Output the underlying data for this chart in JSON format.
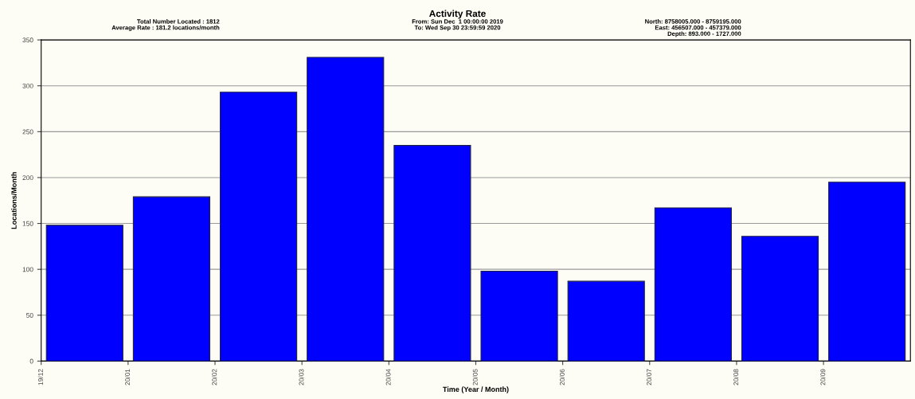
{
  "chart_data": {
    "type": "bar",
    "title": "Activity Rate",
    "annotations": [
      "Total Number Located : 1812\nAverage Rate : 181.2 locations/month",
      "From: Sun Dec  1 00:00:00 2019\nTo: Wed Sep 30 23:59:59 2020",
      "North: 8758005.000 - 8759195.000\nEast: 456507.000 - 457379.000\nDepth: 893.000 - 1727.000"
    ],
    "xlabel": "Time (Year / Month)",
    "ylabel": "Locations/Month",
    "categories": [
      "19/12",
      "20/01",
      "20/02",
      "20/03",
      "20/04",
      "20/05",
      "20/06",
      "20/07",
      "20/08",
      "20/09"
    ],
    "values": [
      148,
      179,
      293,
      331,
      235,
      98,
      87,
      167,
      136,
      195
    ],
    "color": "#0000ff",
    "ylim": [
      0,
      350
    ],
    "yticks": [
      0,
      50,
      100,
      150,
      200,
      250,
      300,
      350
    ],
    "grid": "y"
  }
}
